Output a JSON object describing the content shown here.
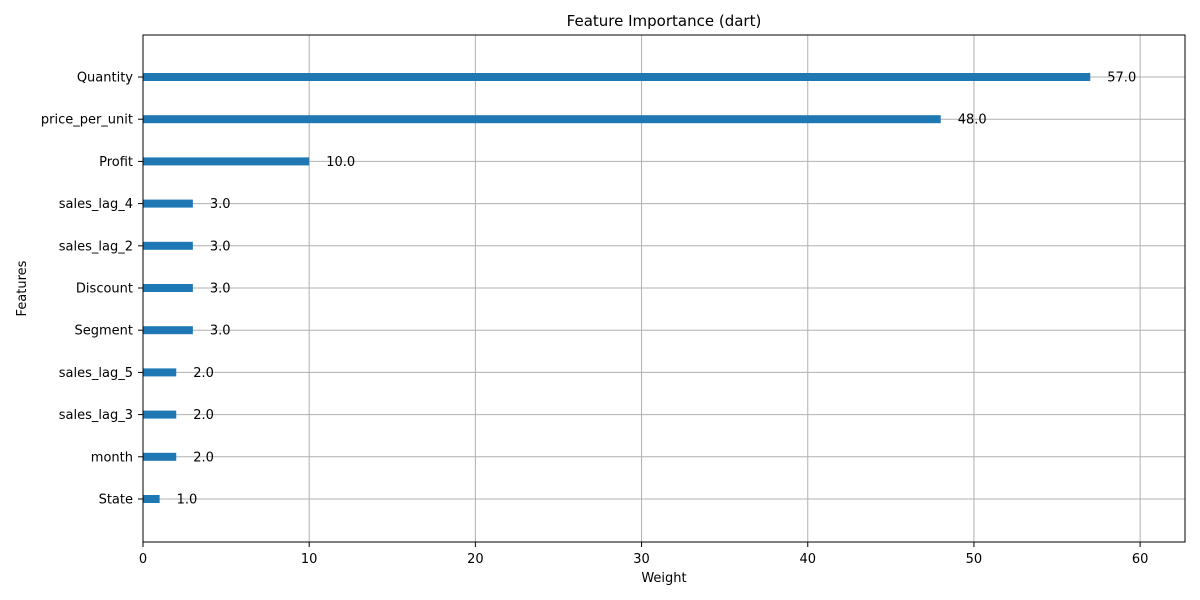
{
  "chart_data": {
    "type": "bar",
    "orientation": "horizontal",
    "title": "Feature Importance (dart)",
    "xlabel": "Weight",
    "ylabel": "Features",
    "categories": [
      "Quantity",
      "price_per_unit",
      "Profit",
      "sales_lag_4",
      "sales_lag_2",
      "Discount",
      "Segment",
      "sales_lag_5",
      "sales_lag_3",
      "month",
      "State"
    ],
    "values": [
      57,
      48,
      10,
      3,
      3,
      3,
      3,
      2,
      2,
      2,
      1
    ],
    "value_labels": [
      "57.0",
      "48.0",
      "10.0",
      "3.0",
      "3.0",
      "3.0",
      "3.0",
      "2.0",
      "2.0",
      "2.0",
      "1.0"
    ],
    "xlim": [
      0,
      62.7
    ],
    "xticks": [
      0,
      10,
      20,
      30,
      40,
      50,
      60
    ],
    "xtick_labels": [
      "0",
      "10",
      "20",
      "30",
      "40",
      "50",
      "60"
    ],
    "grid": true,
    "bar_color": "#1f77b4"
  }
}
